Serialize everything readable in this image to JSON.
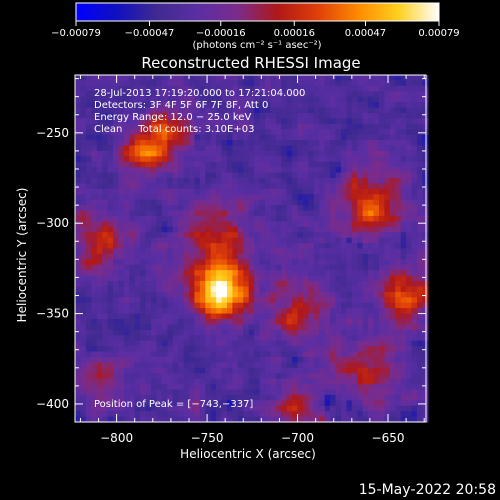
{
  "chart_data": {
    "type": "heatmap",
    "title": "Reconstructed RHESSI Image",
    "xlabel": "Heliocentric X (arcsec)",
    "ylabel": "Heliocentric Y (arcsec)",
    "xlim": [
      -823,
      -629
    ],
    "ylim": [
      -410,
      -218
    ],
    "x_ticks": [
      -800,
      -750,
      -700,
      -650
    ],
    "x_tick_labels": [
      "−800",
      "−750",
      "−700",
      "−650"
    ],
    "y_ticks": [
      -250,
      -300,
      -350,
      -400
    ],
    "y_tick_labels": [
      "−250",
      "−300",
      "−350",
      "−400"
    ],
    "colorbar": {
      "range": [
        -0.00079,
        0.00079
      ],
      "ticks": [
        -0.00079,
        -0.00047,
        -0.00016,
        0.00016,
        0.00047,
        0.00079
      ],
      "tick_labels": [
        "−0.00079",
        "−0.00047",
        "−0.00016",
        "0.00016",
        "0.00047",
        "0.00079"
      ],
      "unit_label": "(photons cm⁻² s⁻¹ asec⁻²)",
      "colormap": [
        "#0000ff",
        "#1010c0",
        "#402a90",
        "#5a2ea4",
        "#7a2c8c",
        "#b01818",
        "#e04008",
        "#ff8a00",
        "#ffd020",
        "#ffffff"
      ]
    },
    "annotations": [
      "28‑Jul‑2013 17:19:20.000 to 17:21:04.000",
      "Detectors: 3F 4F 5F 6F 7F 8F, Att 0",
      "Energy Range: 12.0 − 25.0 keV",
      "Clean     Total counts: 3.10E+03"
    ],
    "peak_label": "Position of Peak = [−743,−337]",
    "peak": [
      -743,
      -337
    ],
    "sources": [
      {
        "x": -743,
        "y": -337,
        "sigma": 11,
        "amp": 1.0
      },
      {
        "x": -785,
        "y": -262,
        "sigma": 8,
        "amp": 0.62
      },
      {
        "x": -770,
        "y": -250,
        "sigma": 9,
        "amp": 0.5
      },
      {
        "x": -810,
        "y": -310,
        "sigma": 12,
        "amp": 0.45
      },
      {
        "x": -745,
        "y": -305,
        "sigma": 14,
        "amp": 0.38
      },
      {
        "x": -700,
        "y": -350,
        "sigma": 10,
        "amp": 0.42
      },
      {
        "x": -660,
        "y": -290,
        "sigma": 14,
        "amp": 0.5
      },
      {
        "x": -640,
        "y": -340,
        "sigma": 10,
        "amp": 0.55
      },
      {
        "x": -660,
        "y": -380,
        "sigma": 14,
        "amp": 0.4
      },
      {
        "x": -700,
        "y": -400,
        "sigma": 10,
        "amp": 0.35
      },
      {
        "x": -810,
        "y": -390,
        "sigma": 10,
        "amp": 0.3
      }
    ]
  },
  "timestamp": "15‑May‑2022 20:58"
}
